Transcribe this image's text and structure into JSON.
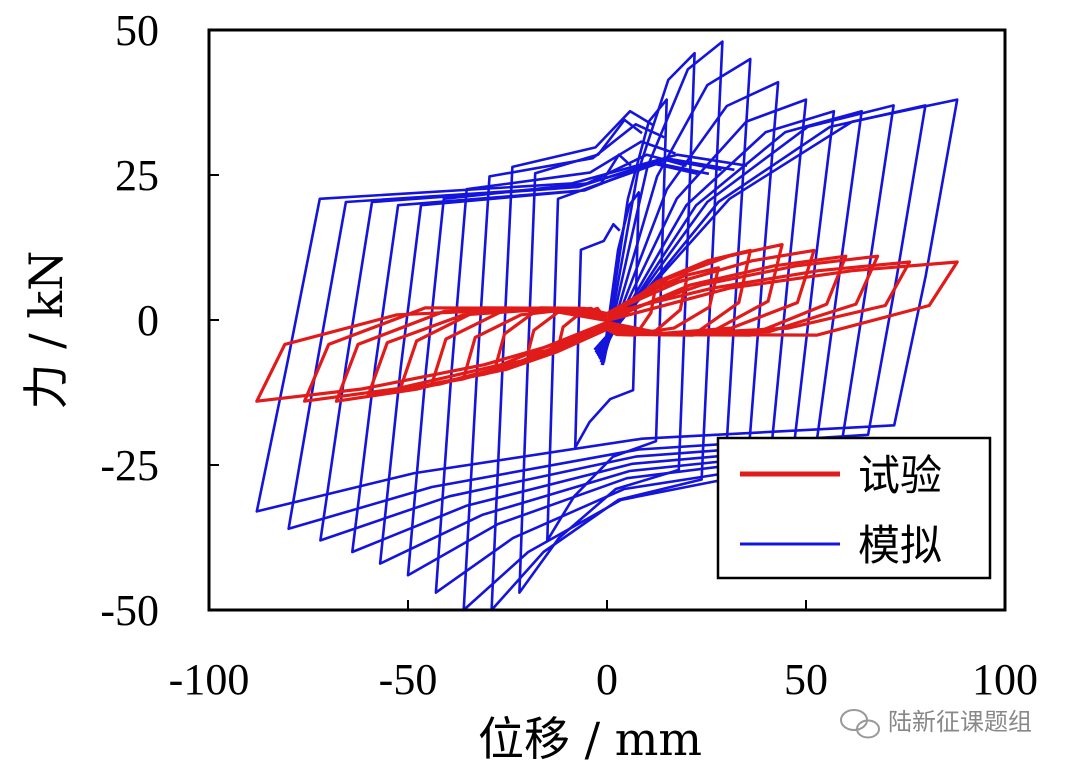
{
  "chart_data": {
    "type": "line",
    "xlabel": "位移 / mm",
    "ylabel": "力 / kN",
    "xlim": [
      -100,
      100
    ],
    "ylim": [
      -50,
      50
    ],
    "xticks": [
      -100,
      -50,
      0,
      50,
      100
    ],
    "yticks": [
      -50,
      -25,
      0,
      25,
      50
    ],
    "grid": false,
    "legend_position": "bottom-right",
    "series": [
      {
        "name": "试验",
        "color": "#e11a1a",
        "cycles": [
          {
            "dmax": 12,
            "fmax": 5,
            "fmin": -4
          },
          {
            "dmax": 20,
            "fmax": 7,
            "fmin": -6
          },
          {
            "dmax": 28,
            "fmax": 9,
            "fmin": -8
          },
          {
            "dmax": 36,
            "fmax": 12,
            "fmin": -10
          },
          {
            "dmax": 44,
            "fmax": 13,
            "fmin": -11
          },
          {
            "dmax": 52,
            "fmax": 12,
            "fmin": -12
          },
          {
            "dmax": 60,
            "fmax": 11,
            "fmin": -13
          },
          {
            "dmax": 68,
            "fmax": 11,
            "fmin": -14
          },
          {
            "dmax": 76,
            "fmax": 10,
            "fmin": -14
          },
          {
            "dmax": 88,
            "fmax": 10,
            "fmin": -14
          }
        ]
      },
      {
        "name": "模拟",
        "color": "#1414dc",
        "cycles": [
          {
            "dmax": 8,
            "fmax": 22,
            "fmin": -22
          },
          {
            "dmax": 15,
            "fmax": 38,
            "fmin": -38
          },
          {
            "dmax": 22,
            "fmax": 46,
            "fmin": -47
          },
          {
            "dmax": 29,
            "fmax": 48,
            "fmin": -50
          },
          {
            "dmax": 36,
            "fmax": 45,
            "fmin": -50
          },
          {
            "dmax": 43,
            "fmax": 41,
            "fmin": -47
          },
          {
            "dmax": 50,
            "fmax": 38,
            "fmin": -44
          },
          {
            "dmax": 57,
            "fmax": 36,
            "fmin": -42
          },
          {
            "dmax": 64,
            "fmax": 36,
            "fmin": -40
          },
          {
            "dmax": 72,
            "fmax": 37,
            "fmin": -38
          },
          {
            "dmax": 80,
            "fmax": 37,
            "fmin": -36
          },
          {
            "dmax": 88,
            "fmax": 38,
            "fmin": -33
          }
        ]
      }
    ]
  },
  "legend": [
    {
      "label": "试验",
      "color": "#e11a1a"
    },
    {
      "label": "模拟",
      "color": "#1414dc"
    }
  ],
  "watermark": "陆新征课题组"
}
